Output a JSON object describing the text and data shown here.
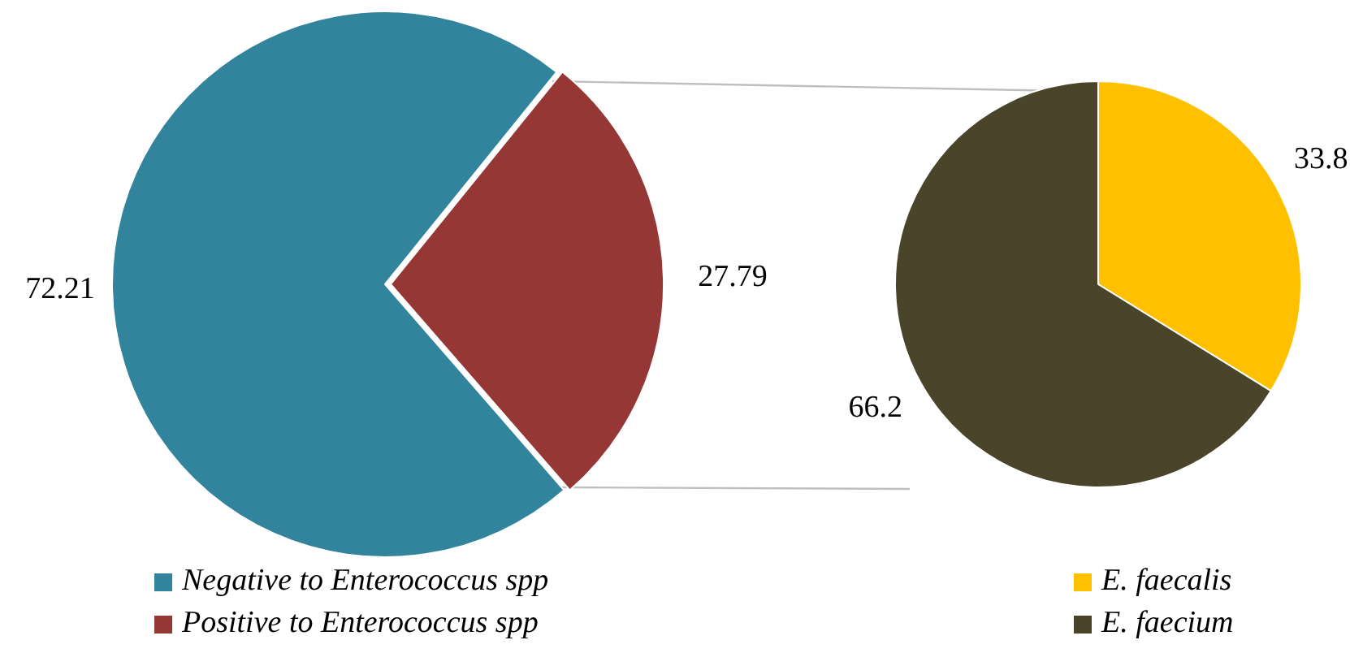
{
  "chart_data": [
    {
      "type": "pie",
      "categories": [
        "Negative to Enterococcus spp",
        "Positive to Enterococcus spp"
      ],
      "values": [
        72.21,
        27.79
      ],
      "colors": [
        "#31849b",
        "#953735"
      ],
      "data_labels": true,
      "legend": "bottom left"
    },
    {
      "type": "pie",
      "categories": [
        "E. faecalis",
        "E. faecium"
      ],
      "values": [
        33.8,
        66.2
      ],
      "colors": [
        "#ffc000",
        "#4a452a"
      ],
      "data_labels": true,
      "legend": "bottom right"
    }
  ]
}
